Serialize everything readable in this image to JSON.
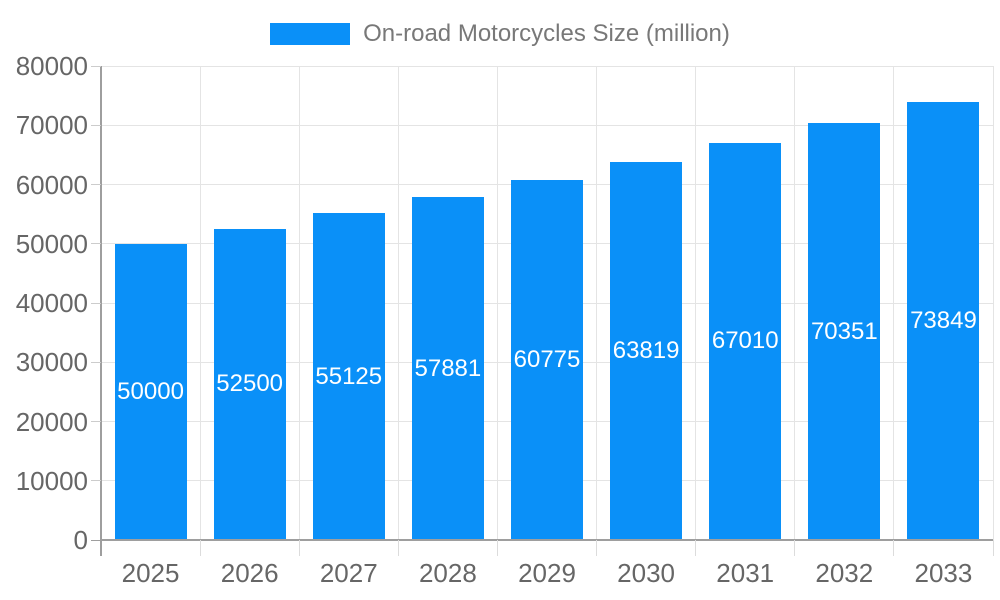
{
  "legend": {
    "series_label": "On-road Motorcycles Size (million)"
  },
  "chart_data": {
    "type": "bar",
    "title": "On-road Motorcycles Size (million)",
    "series_name": "On-road Motorcycles Size (million)",
    "categories": [
      "2025",
      "2026",
      "2027",
      "2028",
      "2029",
      "2030",
      "2031",
      "2032",
      "2033"
    ],
    "values": [
      50000,
      52500,
      55125,
      57881,
      60775,
      63819,
      67010,
      70351,
      73849
    ],
    "xlabel": "",
    "ylabel": "",
    "ylim": [
      0,
      80000
    ],
    "y_ticks": [
      0,
      10000,
      20000,
      30000,
      40000,
      50000,
      60000,
      70000,
      80000
    ],
    "grid": true,
    "legend_position": "top",
    "value_label_position": "inside-center",
    "colors": {
      "bar": "#0a90f8",
      "grid": "#e4e4e4",
      "axis": "#9e9e9e",
      "axis_text": "#666666",
      "legend_text": "#787878",
      "value_text": "#ffffff",
      "background": "#ffffff"
    }
  }
}
